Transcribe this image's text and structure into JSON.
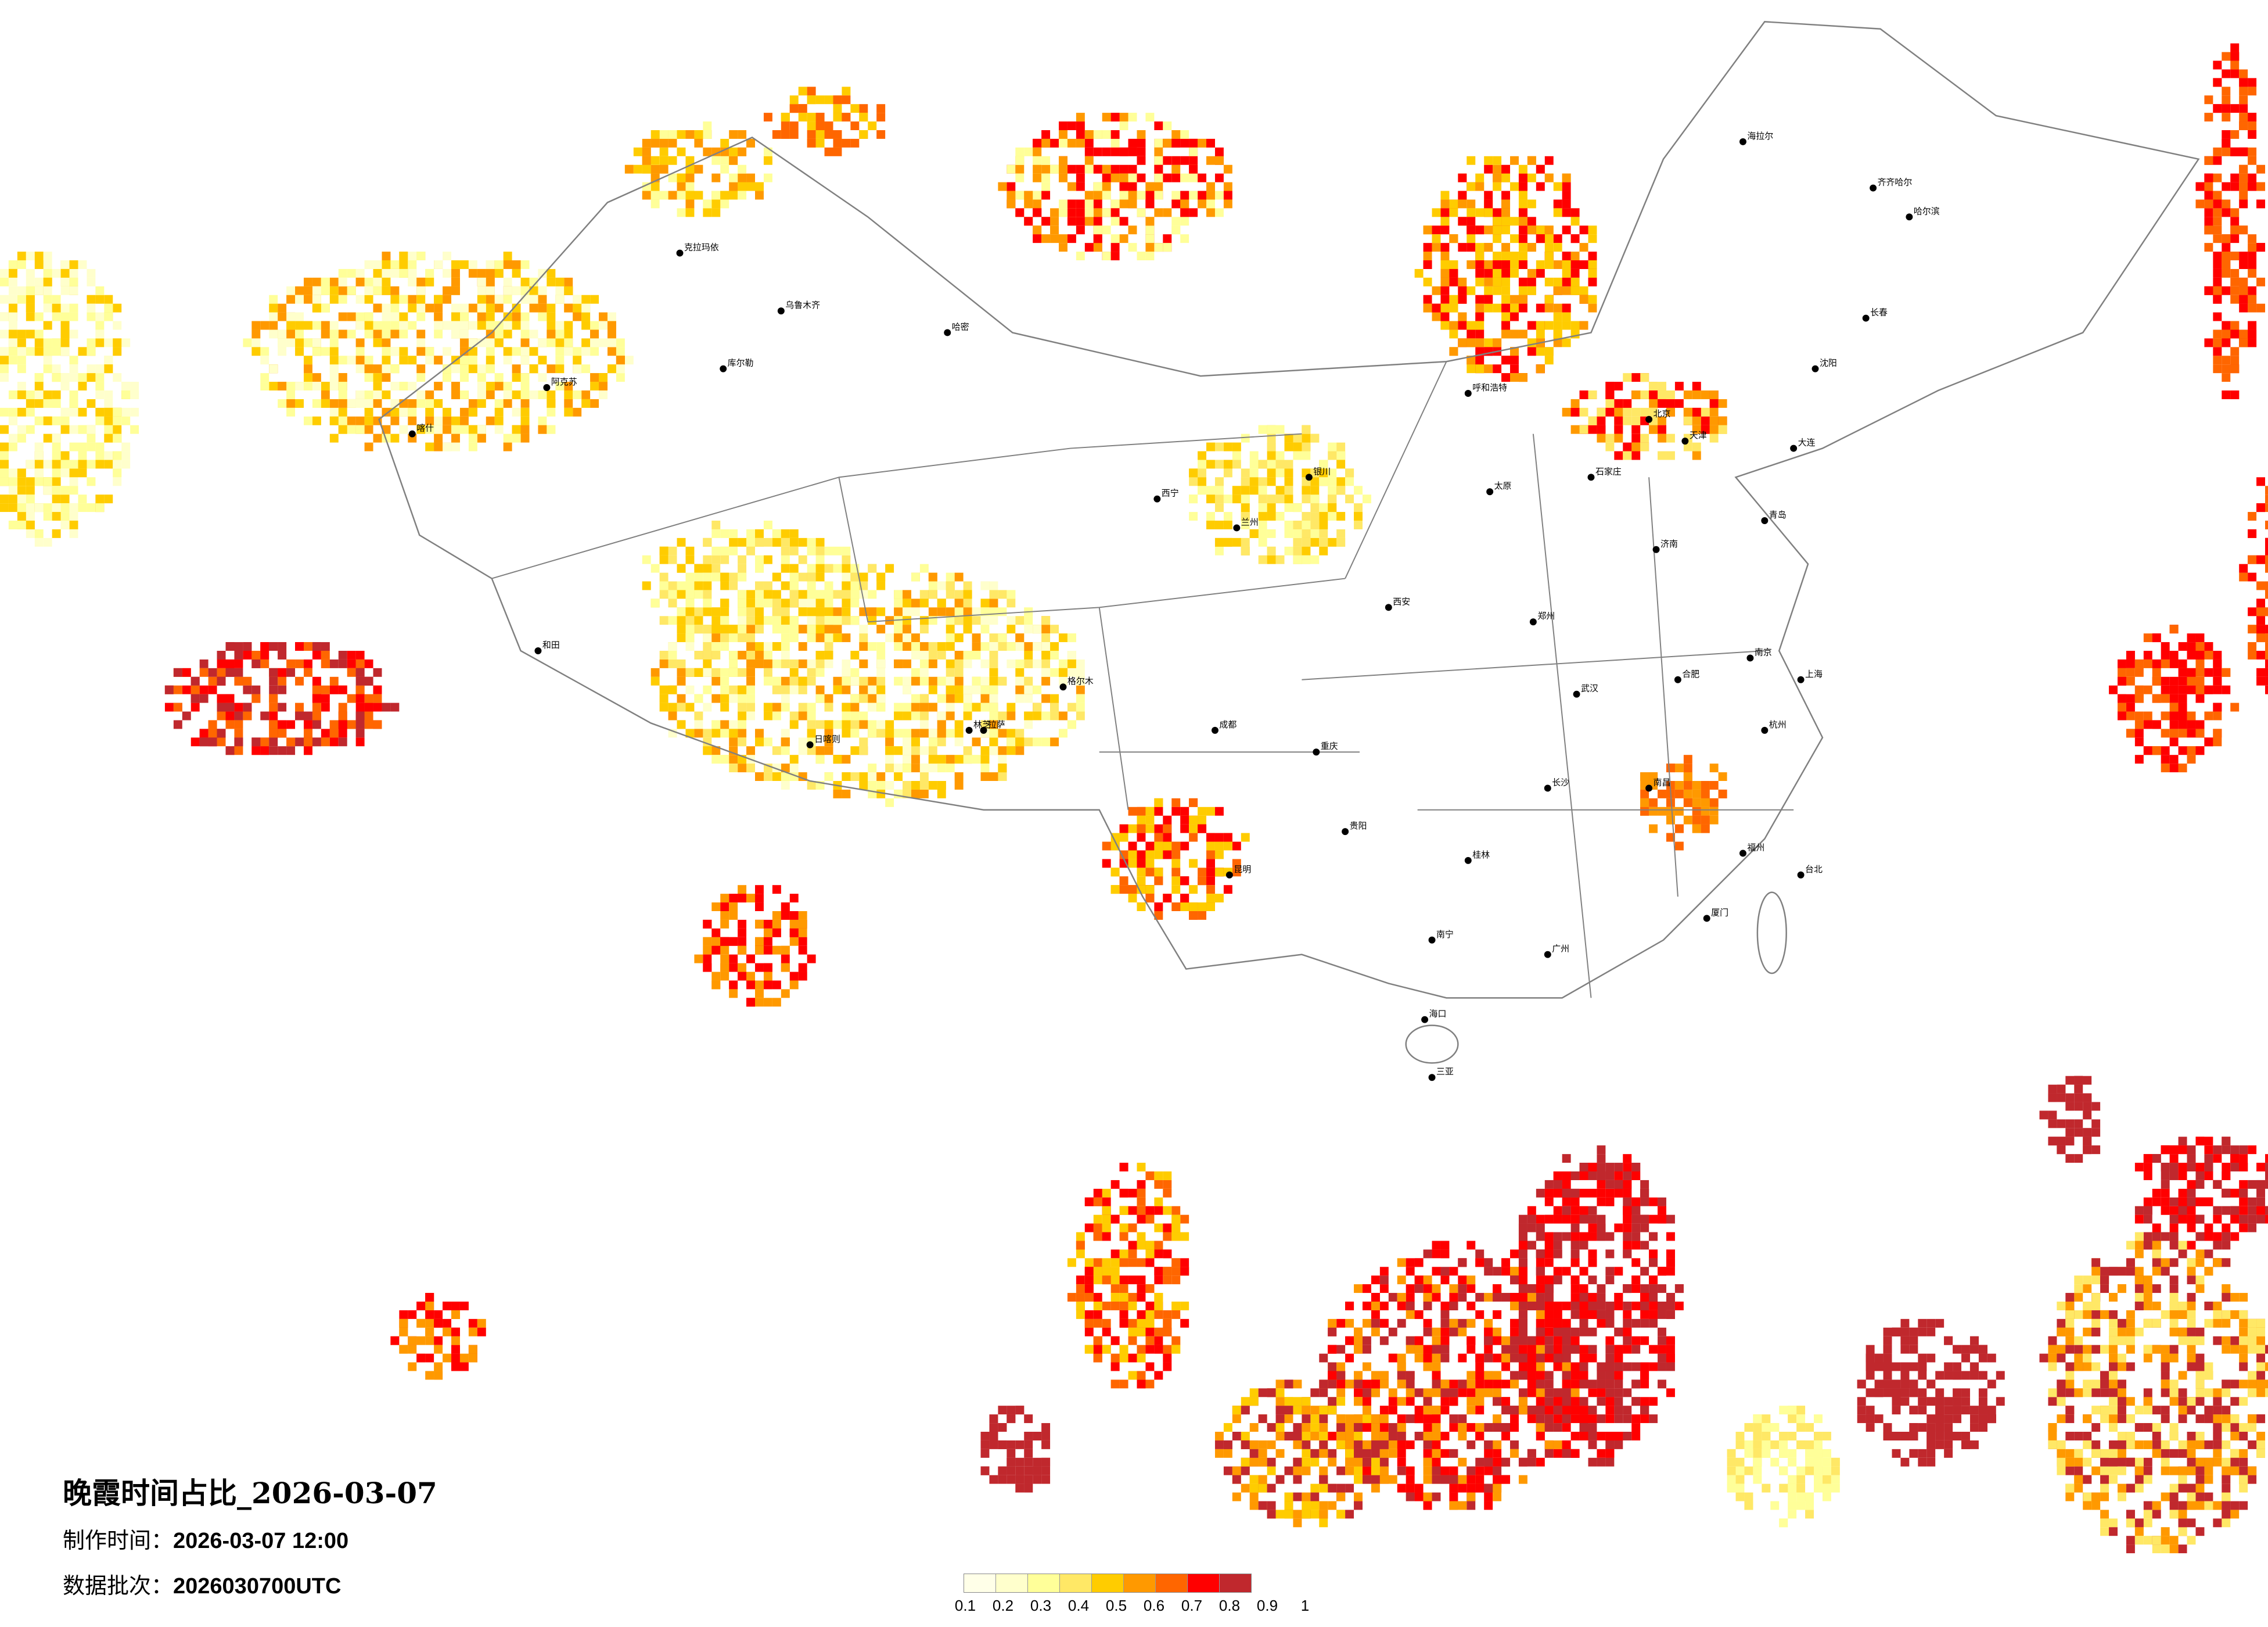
{
  "title": "晚霞时间占比_2026-03-07",
  "made_time_label": "制作时间：",
  "made_time_value": "2026-03-07 12:00",
  "batch_label": "数据批次：",
  "batch_value": "2026030700UTC",
  "legend": {
    "ticks": [
      "0.1",
      "0.2",
      "0.3",
      "0.4",
      "0.5",
      "0.6",
      "0.7",
      "0.8",
      "0.9",
      "1"
    ],
    "colors": [
      "#FFFFE8",
      "#FFFFCC",
      "#FFFF99",
      "#FFE866",
      "#FFCC00",
      "#FF9900",
      "#FF6600",
      "#FF0000",
      "#C0282D"
    ]
  },
  "map": {
    "boundary_color": "#808080",
    "city_dot_color": "#000000",
    "cities": [
      "北京",
      "天津",
      "石家庄",
      "太原",
      "呼和浩特",
      "济南",
      "郑州",
      "西安",
      "兰州",
      "西宁",
      "银川",
      "乌鲁木齐",
      "拉萨",
      "成都",
      "重庆",
      "贵阳",
      "昆明",
      "南宁",
      "广州",
      "海口",
      "长沙",
      "武汉",
      "南昌",
      "合肥",
      "南京",
      "上海",
      "杭州",
      "福州",
      "台北",
      "沈阳",
      "长春",
      "哈尔滨",
      "克拉玛依",
      "和田",
      "喀什",
      "阿克苏",
      "库尔勒",
      "哈密",
      "格尔木",
      "日喀则",
      "林芝",
      "齐齐哈尔",
      "海拉尔",
      "大连",
      "青岛",
      "厦门",
      "桂林",
      "三亚"
    ]
  }
}
